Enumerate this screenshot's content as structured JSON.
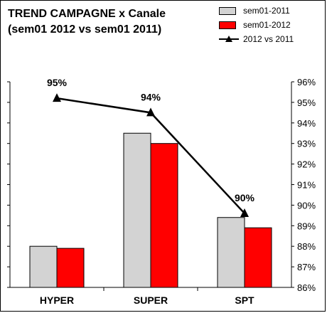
{
  "chart_data": {
    "type": "bar",
    "title": [
      "TREND CAMPAGNE x Canale",
      "(sem01 2012 vs sem01 2011)"
    ],
    "categories": [
      "HYPER",
      "SUPER",
      "SPT"
    ],
    "series": [
      {
        "name": "sem01-2011",
        "type": "bar",
        "color": "#d3d3d3",
        "values": [
          20,
          75,
          34
        ]
      },
      {
        "name": "sem01-2012",
        "type": "bar",
        "color": "#ff0000",
        "values": [
          19,
          70,
          29
        ]
      },
      {
        "name": "2012 vs 2011",
        "type": "line",
        "axis": "right",
        "color": "#000000",
        "marker": "triangle",
        "values": [
          95.2,
          94.5,
          89.6
        ],
        "data_labels": [
          "95%",
          "94%",
          "90%"
        ]
      }
    ],
    "y_left": {
      "ylim": [
        0,
        100
      ],
      "ticks_labeled": false
    },
    "y_right": {
      "ylim": [
        86,
        96
      ],
      "ticks": [
        "86%",
        "87%",
        "88%",
        "89%",
        "90%",
        "91%",
        "92%",
        "93%",
        "94%",
        "95%",
        "96%"
      ]
    },
    "legend_position": "top-right",
    "grid": false
  }
}
